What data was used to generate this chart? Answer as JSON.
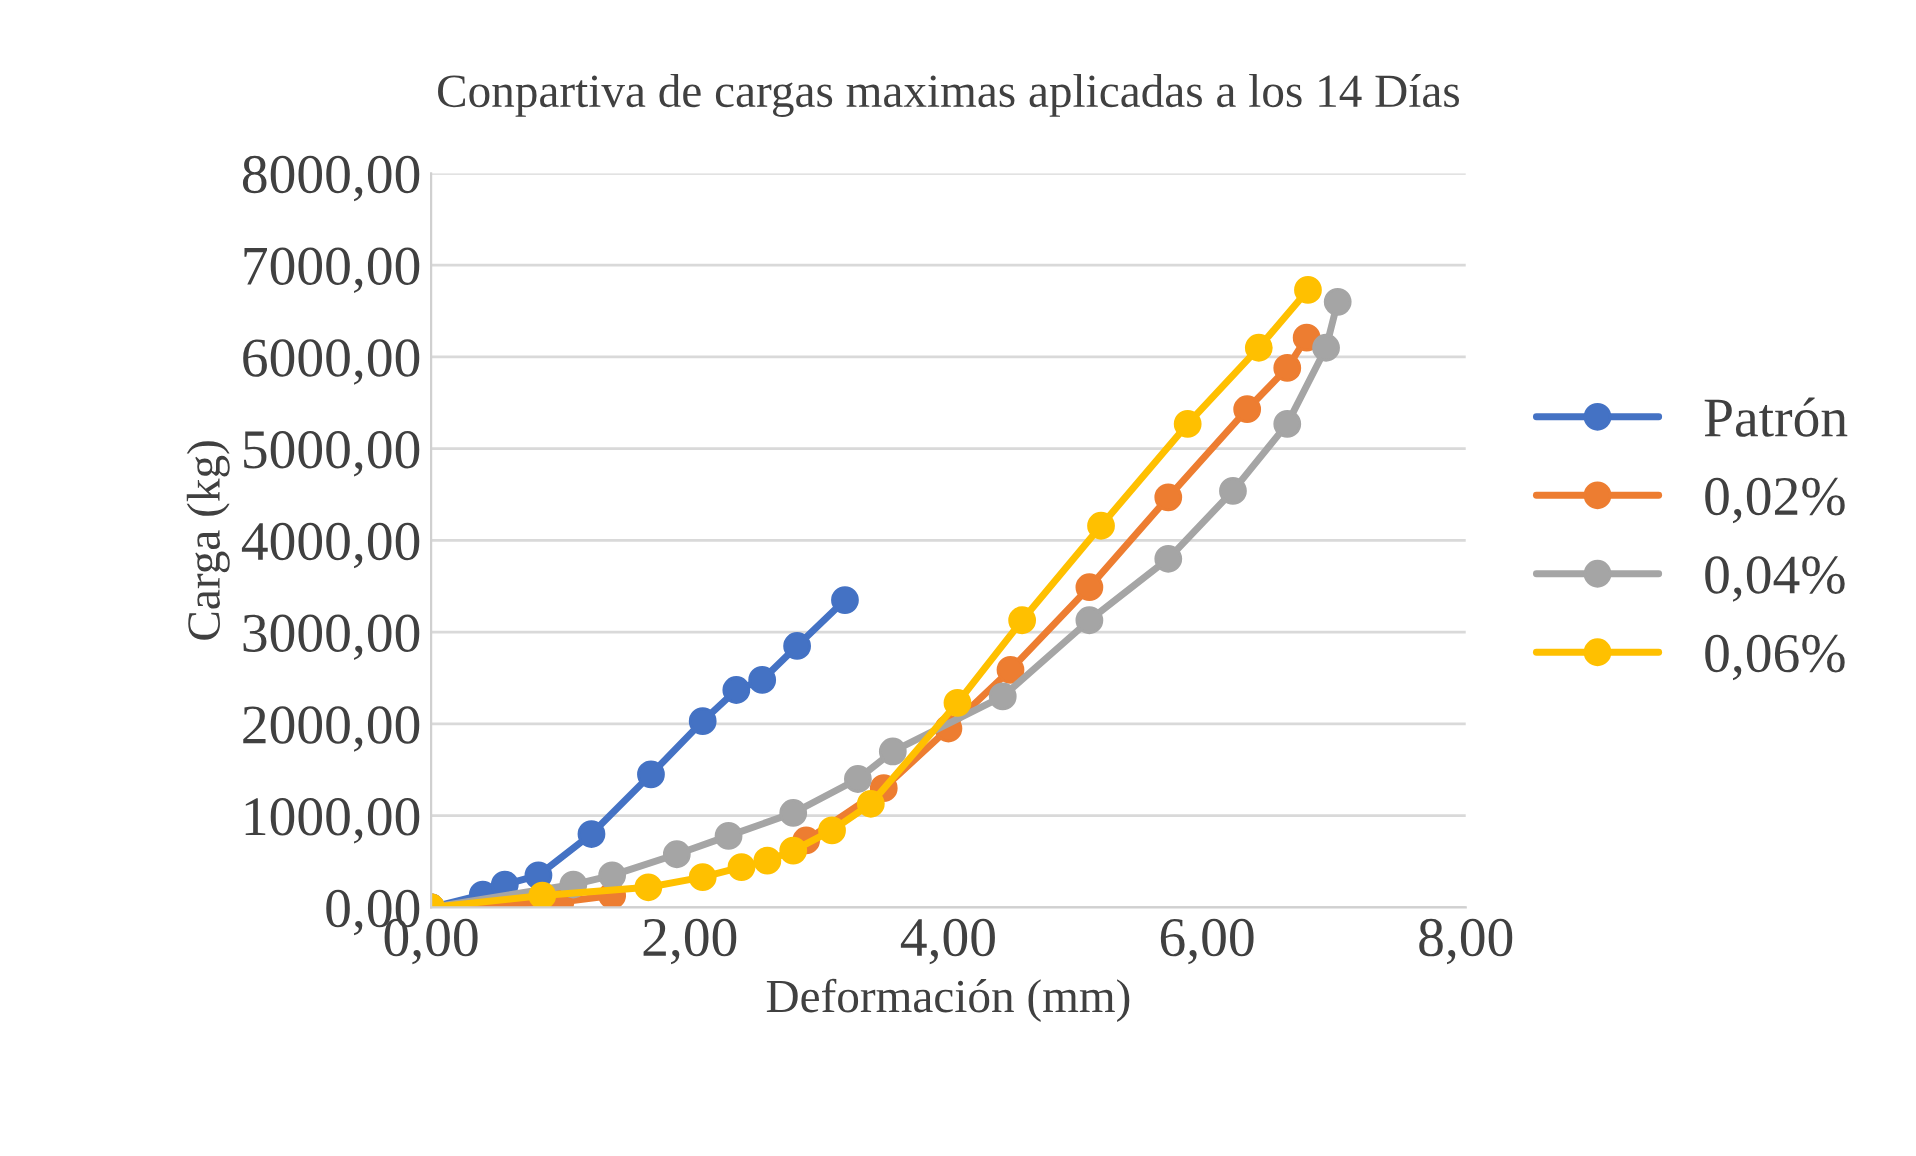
{
  "chart_data": {
    "type": "line",
    "title": "Conpartiva de cargas maximas aplicadas a los 14 Días",
    "xlabel": "Deformación (mm)",
    "ylabel": "Carga (kg)",
    "xlim": [
      0,
      8
    ],
    "ylim": [
      0,
      8000
    ],
    "xticks": [
      {
        "value": 0,
        "label": "0,00"
      },
      {
        "value": 2,
        "label": "2,00"
      },
      {
        "value": 4,
        "label": "4,00"
      },
      {
        "value": 6,
        "label": "6,00"
      },
      {
        "value": 8,
        "label": "8,00"
      }
    ],
    "yticks": [
      {
        "value": 0,
        "label": "0,00"
      },
      {
        "value": 1000,
        "label": "1000,00"
      },
      {
        "value": 2000,
        "label": "2000,00"
      },
      {
        "value": 3000,
        "label": "3000,00"
      },
      {
        "value": 4000,
        "label": "4000,00"
      },
      {
        "value": 5000,
        "label": "5000,00"
      },
      {
        "value": 6000,
        "label": "6000,00"
      },
      {
        "value": 7000,
        "label": "7000,00"
      },
      {
        "value": 8000,
        "label": "8000,00"
      }
    ],
    "grid": "y",
    "legend": "right",
    "marker": "circle",
    "line_style": "solid",
    "series": [
      {
        "name": "Patrón",
        "color": "#4472c4",
        "x": [
          0,
          0.4,
          0.57,
          0.83,
          1.24,
          1.7,
          2.1,
          2.36,
          2.56,
          2.83,
          3.2
        ],
        "values": [
          0,
          140,
          250,
          350,
          800,
          1450,
          2030,
          2370,
          2480,
          2850,
          3350
        ]
      },
      {
        "name": "0,02%",
        "color": "#ed7d31",
        "x": [
          0,
          1.0,
          1.4,
          1.95,
          2.5,
          2.9,
          3.5,
          4.0,
          4.48,
          5.09,
          5.7,
          6.31,
          6.62,
          6.77
        ],
        "values": [
          0,
          60,
          130,
          null,
          null,
          730,
          1300,
          1950,
          2590,
          3490,
          4470,
          5430,
          5880,
          6210
        ]
      },
      {
        "name": "0,04%",
        "color": "#a5a5a5",
        "x": [
          0,
          1.1,
          1.4,
          1.9,
          2.3,
          2.8,
          3.3,
          3.57,
          4.42,
          5.09,
          5.7,
          6.2,
          6.62,
          6.92,
          7.01
        ],
        "values": [
          0,
          250,
          350,
          580,
          780,
          1030,
          1400,
          1700,
          2300,
          3130,
          3800,
          4540,
          5270,
          6100,
          6600
        ]
      },
      {
        "name": "0,06%",
        "color": "#ffc000",
        "x": [
          0,
          0.86,
          1.68,
          2.1,
          2.4,
          2.6,
          2.8,
          3.1,
          3.4,
          4.07,
          4.57,
          5.18,
          5.85,
          6.4,
          6.78
        ],
        "values": [
          0,
          130,
          220,
          330,
          440,
          510,
          620,
          840,
          1130,
          2230,
          3130,
          4160,
          5270,
          6100,
          6730
        ]
      }
    ]
  }
}
